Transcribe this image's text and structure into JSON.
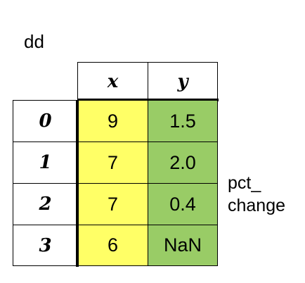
{
  "dataframe_name": "dd",
  "columns": [
    "x",
    "y"
  ],
  "index": [
    "0",
    "1",
    "2",
    "3"
  ],
  "rows": [
    [
      "9",
      "1.5"
    ],
    [
      "7",
      "2.0"
    ],
    [
      "7",
      "0.4"
    ],
    [
      "6",
      "NaN"
    ]
  ],
  "side_label": {
    "line1": "pct_",
    "line2": "change"
  },
  "colors": {
    "x_column_fill": "#ffff66",
    "y_column_fill": "#99cc66",
    "border": "#000000"
  }
}
